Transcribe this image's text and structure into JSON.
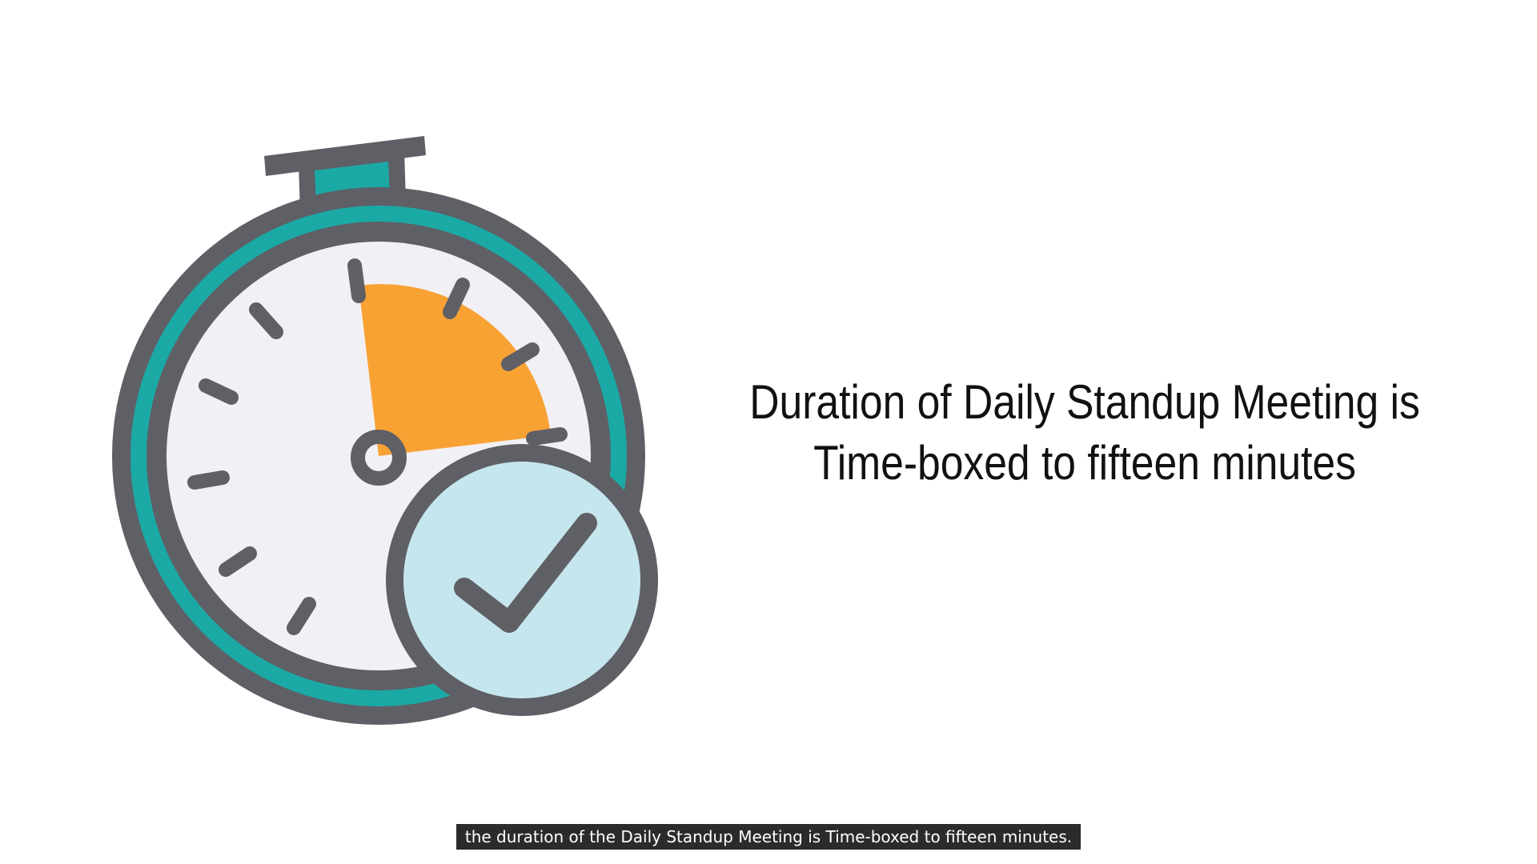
{
  "slide": {
    "headline_line1": "Duration of Daily Standup Meeting is",
    "headline_line2": "Time-boxed to fifteen minutes"
  },
  "subtitle": {
    "text": "the duration of the Daily Standup Meeting is Time-boxed to fifteen minutes."
  },
  "illustration": {
    "icons": [
      "stopwatch-icon",
      "checkmark-badge-icon"
    ],
    "colors": {
      "outline": "#5f5f66",
      "teal": "#1ba9a6",
      "face": "#f1f1f5",
      "highlight": "#f9a234",
      "badge": "#c5e6ec"
    }
  }
}
